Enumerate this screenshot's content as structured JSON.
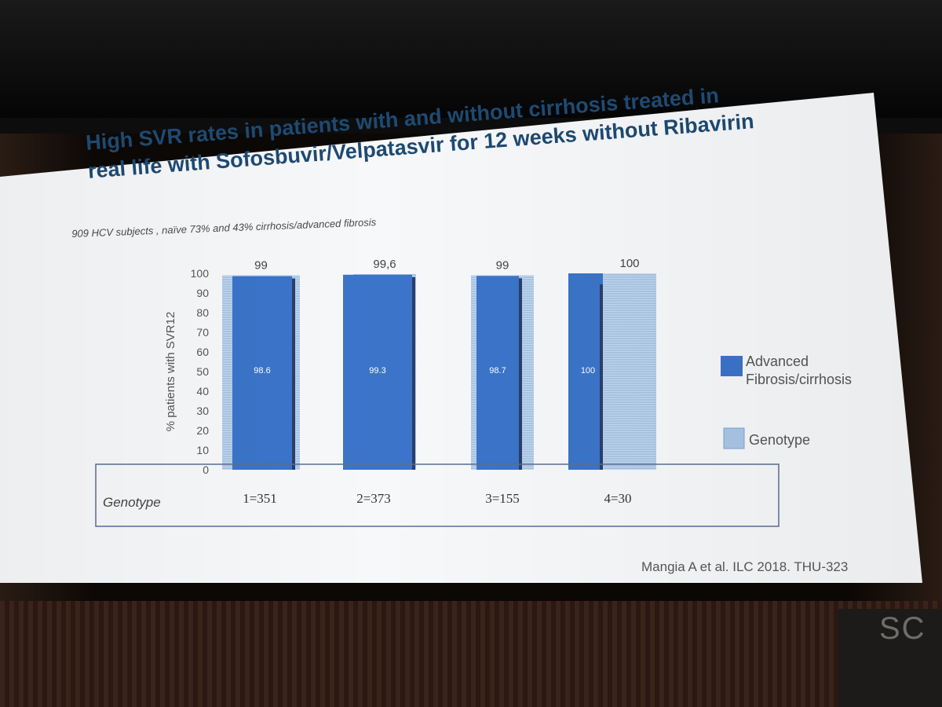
{
  "slide": {
    "title_line1": "High SVR rates in patients with and without cirrhosis treated in",
    "title_line2": "real life with Sofosbuvir/Velpatasvir for 12 weeks without Ribavirin",
    "subtitle": "909  HCV subjects , naïve 73% and 43% cirrhosis/advanced fibrosis",
    "citation": "Mangia A et al. ILC 2018. THU-323",
    "floor_sign": "SC"
  },
  "colors": {
    "advanced": "#3b74c9",
    "genotype": "#a9c6e6",
    "title": "#1e4a72"
  },
  "chart_data": {
    "type": "bar",
    "title": "",
    "xlabel": "",
    "ylabel": "% patients with SVR12",
    "ylim": [
      0,
      100
    ],
    "yticks": [
      0,
      10,
      20,
      30,
      40,
      50,
      60,
      70,
      80,
      90,
      100
    ],
    "categories": [
      "1=351",
      "2=373",
      "3=155",
      "4=30"
    ],
    "category_row_label": "Genotype",
    "series": [
      {
        "name": "Advanced Fibrosis/cirrhosis",
        "values": [
          98.6,
          99.3,
          98.7,
          100
        ],
        "labels": [
          "98.6",
          "99.3",
          "98.7",
          "100"
        ]
      },
      {
        "name": "Genotype",
        "values": [
          99,
          99.6,
          99,
          100
        ],
        "labels": [
          "99",
          "99,6",
          "99",
          "100"
        ]
      }
    ],
    "legend": {
      "position": "right",
      "advanced_line1": "Advanced",
      "advanced_line2": "Fibrosis/cirrhosis",
      "genotype": "Genotype"
    },
    "grid": false
  }
}
